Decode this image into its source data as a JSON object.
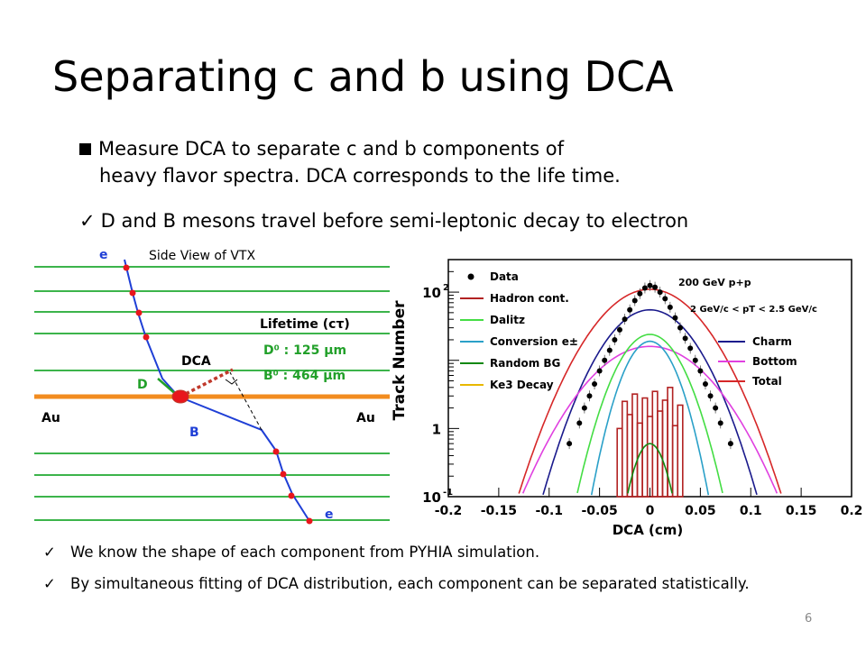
{
  "slide": {
    "title": "Separating c and b using DCA",
    "bullet1_line1": "Measure DCA to separate c and b components of",
    "bullet1_line2": "heavy flavor spectra. DCA corresponds to the life time.",
    "bullet2": "D and B mesons travel before semi-leptonic decay to electron",
    "bottom1": "We know the shape of each component from PYHIA simulation.",
    "bottom2": "By simultaneous fitting of DCA distribution, each component can be separated statistically.",
    "page_number": "6"
  },
  "diagram": {
    "caption": "Side View of VTX",
    "e_top": "e",
    "e_bottom": "e",
    "label_D": "D",
    "label_B": "B",
    "label_DCA": "DCA",
    "au_left": "Au",
    "au_right": "Au",
    "lifetime_title": "Lifetime (cτ)",
    "lifetime_D": "D⁰ : 125 μm",
    "lifetime_B": "B⁰ : 464 μm",
    "colors": {
      "layer": "#3cb44b",
      "track": "#1f3fd6",
      "beam": "#f28c1f",
      "hit": "#e8161c",
      "lifetime": "#22a02a",
      "dca": "#c0392b"
    }
  },
  "chart_data": {
    "type": "line",
    "xlabel": "DCA (cm)",
    "ylabel": "Track Number",
    "x_ticks": [
      "-0.2",
      "-0.15",
      "-0.1",
      "-0.05",
      "0",
      "0.05",
      "0.1",
      "0.15",
      "0.2"
    ],
    "y_ticks": [
      "10",
      "1",
      "10"
    ],
    "y_tick_exponents": [
      "-1",
      "",
      "2"
    ],
    "xlim": [
      -0.2,
      0.2
    ],
    "ylim": [
      0.1,
      300
    ],
    "y_scale": "log",
    "annotation1": "200 GeV  p+p",
    "annotation2": "2 GeV/c < pT < 2.5 GeV/c",
    "legend_left": [
      "Data",
      "Hadron cont.",
      "Dalitz",
      "Conversion e±",
      "Random BG",
      "Ke3 Decay"
    ],
    "legend_right": [
      "Charm",
      "Bottom",
      "Total"
    ],
    "series": [
      {
        "name": "Total",
        "color": "#d62728",
        "peak": 110,
        "sigma": 0.035
      },
      {
        "name": "Charm",
        "color": "#1a1a8c",
        "peak": 55,
        "sigma": 0.03
      },
      {
        "name": "Bottom",
        "color": "#e040e0",
        "peak": 16,
        "sigma": 0.04
      },
      {
        "name": "Dalitz",
        "color": "#44dd44",
        "peak": 24,
        "sigma": 0.022
      },
      {
        "name": "Conversion e±",
        "color": "#2aa0c8",
        "peak": 19,
        "sigma": 0.018
      },
      {
        "name": "Random BG",
        "color": "#118811",
        "peak": 0.6,
        "sigma": 0.012
      }
    ],
    "data_points": [
      [
        -0.08,
        0.6
      ],
      [
        -0.07,
        1.2
      ],
      [
        -0.065,
        2.0
      ],
      [
        -0.06,
        3.0
      ],
      [
        -0.055,
        4.5
      ],
      [
        -0.05,
        7
      ],
      [
        -0.045,
        10
      ],
      [
        -0.04,
        14
      ],
      [
        -0.035,
        20
      ],
      [
        -0.03,
        28
      ],
      [
        -0.025,
        40
      ],
      [
        -0.02,
        55
      ],
      [
        -0.015,
        75
      ],
      [
        -0.01,
        95
      ],
      [
        -0.005,
        115
      ],
      [
        0,
        125
      ],
      [
        0.005,
        118
      ],
      [
        0.01,
        100
      ],
      [
        0.015,
        80
      ],
      [
        0.02,
        60
      ],
      [
        0.025,
        42
      ],
      [
        0.03,
        30
      ],
      [
        0.035,
        21
      ],
      [
        0.04,
        15
      ],
      [
        0.045,
        10
      ],
      [
        0.05,
        7
      ],
      [
        0.055,
        4.5
      ],
      [
        0.06,
        3.0
      ],
      [
        0.065,
        2.0
      ],
      [
        0.07,
        1.2
      ],
      [
        0.08,
        0.6
      ]
    ],
    "hadron_hist": [
      [
        -0.03,
        1.0
      ],
      [
        -0.025,
        2.5
      ],
      [
        -0.02,
        1.6
      ],
      [
        -0.015,
        3.2
      ],
      [
        -0.01,
        1.2
      ],
      [
        -0.005,
        2.8
      ],
      [
        0,
        1.5
      ],
      [
        0.005,
        3.5
      ],
      [
        0.01,
        1.8
      ],
      [
        0.015,
        2.6
      ],
      [
        0.02,
        4.0
      ],
      [
        0.025,
        1.1
      ],
      [
        0.03,
        2.2
      ]
    ]
  }
}
